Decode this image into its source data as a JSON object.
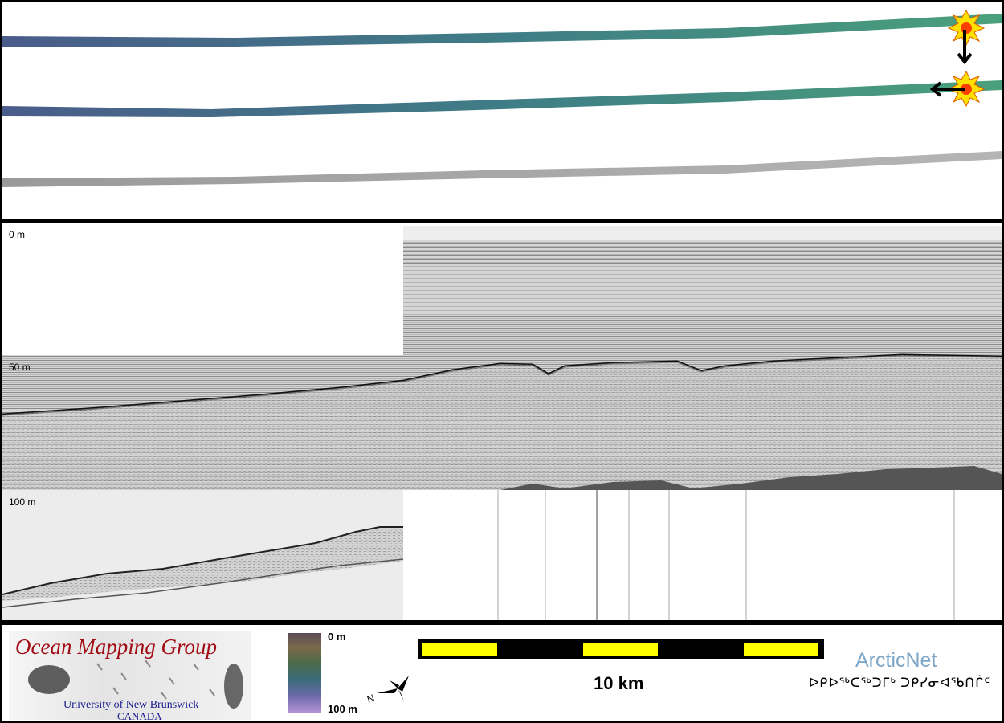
{
  "profile": {
    "depth_labels": [
      "0 m",
      "50 m",
      "100 m"
    ]
  },
  "footer": {
    "logo": {
      "title": "Ocean Mapping Group",
      "university": "University of New Brunswick",
      "country": "CANADA"
    },
    "color_scale": {
      "top_label": "0 m",
      "bottom_label": "100 m"
    },
    "scale_bar": {
      "label": "10 km"
    },
    "partner": {
      "name": "ArcticNet",
      "syllabics": "ᐅᑭᐅᖅᑕᖅᑐᒥᒃ ᑐᑭᓯᓂᐊᖃᑎᒌᑦ"
    }
  },
  "colors": {
    "frame": "#000000",
    "logo_title": "#a00b14",
    "logo_subtitle": "#1a1a8c",
    "scale_bar_fill": "#ffff00",
    "arcticnet_blue": "#7fa7c9"
  }
}
